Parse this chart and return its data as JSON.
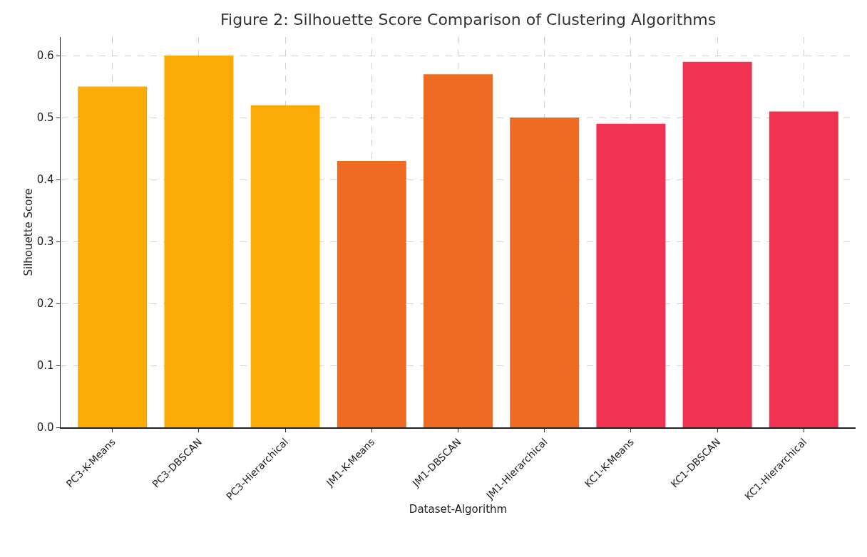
{
  "chart_data": {
    "type": "bar",
    "title": "Figure 2: Silhouette Score Comparison of Clustering Algorithms",
    "xlabel": "Dataset-Algorithm",
    "ylabel": "Silhouette Score",
    "categories": [
      "PC3-K-Means",
      "PC3-DBSCAN",
      "PC3-Hierarchical",
      "JM1-K-Means",
      "JM1-DBSCAN",
      "JM1-Hierarchical",
      "KC1-K-Means",
      "KC1-DBSCAN",
      "KC1-Hierarchical"
    ],
    "values": [
      0.55,
      0.6,
      0.52,
      0.43,
      0.57,
      0.5,
      0.49,
      0.59,
      0.51
    ],
    "colors": [
      "#fbab05",
      "#fbab05",
      "#fbab05",
      "#ef6a22",
      "#ef6a22",
      "#ef6a22",
      "#f03352",
      "#f03352",
      "#f03352"
    ],
    "ylim": [
      0,
      0.63
    ],
    "yticks": [
      {
        "value": 0,
        "label": "0.0"
      },
      {
        "value": 0.1,
        "label": "0.1"
      },
      {
        "value": 0.2,
        "label": "0.2"
      },
      {
        "value": 0.3,
        "label": "0.3"
      },
      {
        "value": 0.4,
        "label": "0.4"
      },
      {
        "value": 0.5,
        "label": "0.5"
      },
      {
        "value": 0.6,
        "label": "0.6"
      }
    ],
    "grid": true
  }
}
